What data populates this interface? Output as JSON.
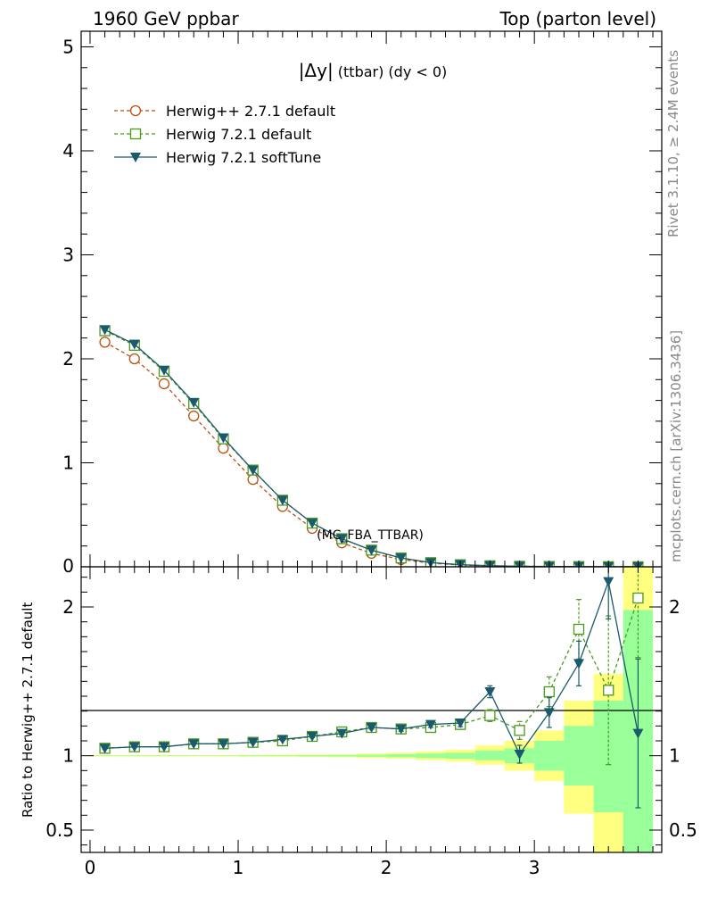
{
  "header": {
    "left": "1960 GeV ppbar",
    "right": "Top (parton level)"
  },
  "side": {
    "rivet": "Rivet 3.1.10, ≥ 2.4M events",
    "mcplots": "mcplots.cern.ch [arXiv:1306.3436]"
  },
  "plot_title": {
    "main": "|Δy|",
    "sub": " (ttbar)  (dy < 0)"
  },
  "watermark": "(MC_FBA_TTBAR)",
  "ratio_ylabel": "Ratio to Herwig++ 2.7.1 default",
  "colors": {
    "herwigpp": "#b8520f",
    "herwig721": "#4a9a1a",
    "softtune": "#1a5a6a",
    "band_yellow": "#ffff80",
    "band_green": "#99ff99"
  },
  "chart_data": [
    {
      "type": "line",
      "panel": "main",
      "xlim": [
        -0.06,
        3.86
      ],
      "ylim": [
        0,
        5.15
      ],
      "x": [
        0.1,
        0.3,
        0.5,
        0.7,
        0.9,
        1.1,
        1.3,
        1.5,
        1.7,
        1.9,
        2.1,
        2.3,
        2.5,
        2.7,
        2.9,
        3.1,
        3.3,
        3.5,
        3.7
      ],
      "series": [
        {
          "name": "Herwig++ 2.7.1 default",
          "marker": "circle",
          "dash": true,
          "values": [
            2.16,
            2.0,
            1.76,
            1.45,
            1.14,
            0.84,
            0.58,
            0.37,
            0.23,
            0.13,
            0.07,
            0.035,
            0.017,
            0.008,
            0.004,
            0.002,
            0.001,
            0.0005,
            0.0002
          ]
        },
        {
          "name": "Herwig 7.2.1 default",
          "marker": "square",
          "dash": true,
          "values": [
            2.27,
            2.13,
            1.88,
            1.57,
            1.23,
            0.93,
            0.64,
            0.42,
            0.27,
            0.16,
            0.085,
            0.04,
            0.02,
            0.01,
            0.005,
            0.003,
            0.002,
            0.001,
            0.0005
          ]
        },
        {
          "name": "Herwig 7.2.1 softTune",
          "marker": "triangle",
          "dash": false,
          "values": [
            2.28,
            2.14,
            1.89,
            1.58,
            1.24,
            0.93,
            0.64,
            0.42,
            0.27,
            0.16,
            0.085,
            0.04,
            0.02,
            0.01,
            0.005,
            0.003,
            0.002,
            0.001,
            0.0005
          ]
        }
      ],
      "yticks": [
        "1",
        "2",
        "3",
        "4",
        "5"
      ]
    },
    {
      "type": "line",
      "panel": "ratio",
      "xlim": [
        -0.06,
        3.86
      ],
      "ylim": [
        0.35,
        2.27
      ],
      "x": [
        0.1,
        0.3,
        0.5,
        0.7,
        0.9,
        1.1,
        1.3,
        1.5,
        1.7,
        1.9,
        2.1,
        2.3,
        2.5,
        2.7,
        2.9,
        3.1,
        3.3,
        3.5,
        3.7
      ],
      "band_edges": [
        0.0,
        0.2,
        0.4,
        0.6,
        0.8,
        1.0,
        1.2,
        1.4,
        1.6,
        1.8,
        2.0,
        2.2,
        2.4,
        2.6,
        2.8,
        3.0,
        3.2,
        3.4,
        3.6,
        3.8
      ],
      "band_yellow": [
        [
          0.995,
          1.005
        ],
        [
          0.995,
          1.005
        ],
        [
          0.995,
          1.005
        ],
        [
          0.995,
          1.005
        ],
        [
          0.995,
          1.005
        ],
        [
          0.994,
          1.006
        ],
        [
          0.993,
          1.007
        ],
        [
          0.992,
          1.008
        ],
        [
          0.99,
          1.01
        ],
        [
          0.985,
          1.015
        ],
        [
          0.98,
          1.02
        ],
        [
          0.97,
          1.03
        ],
        [
          0.96,
          1.04
        ],
        [
          0.94,
          1.07
        ],
        [
          0.9,
          1.1
        ],
        [
          0.83,
          1.17
        ],
        [
          0.61,
          1.37
        ],
        [
          0.35,
          1.55
        ],
        [
          0.35,
          2.27
        ]
      ],
      "band_green": [
        [
          0.998,
          1.002
        ],
        [
          0.998,
          1.002
        ],
        [
          0.998,
          1.002
        ],
        [
          0.998,
          1.002
        ],
        [
          0.998,
          1.002
        ],
        [
          0.997,
          1.003
        ],
        [
          0.997,
          1.003
        ],
        [
          0.996,
          1.004
        ],
        [
          0.995,
          1.005
        ],
        [
          0.993,
          1.007
        ],
        [
          0.99,
          1.01
        ],
        [
          0.985,
          1.015
        ],
        [
          0.98,
          1.02
        ],
        [
          0.97,
          1.035
        ],
        [
          0.95,
          1.05
        ],
        [
          0.9,
          1.1
        ],
        [
          0.8,
          1.2
        ],
        [
          0.62,
          1.37
        ],
        [
          0.35,
          1.98
        ]
      ],
      "series": [
        {
          "name": "Herwig 7.2.1 default",
          "marker": "square",
          "dash": true,
          "values": [
            1.05,
            1.06,
            1.06,
            1.08,
            1.08,
            1.09,
            1.1,
            1.13,
            1.16,
            1.19,
            1.18,
            1.19,
            1.21,
            1.27,
            1.17,
            1.43,
            1.85,
            1.44,
            2.06
          ],
          "err": [
            0.005,
            0.005,
            0.005,
            0.005,
            0.005,
            0.006,
            0.007,
            0.008,
            0.01,
            0.012,
            0.015,
            0.02,
            0.025,
            0.04,
            0.06,
            0.1,
            0.2,
            0.5,
            0.4
          ]
        },
        {
          "name": "Herwig 7.2.1 softTune",
          "marker": "triangle",
          "dash": false,
          "values": [
            1.05,
            1.06,
            1.06,
            1.08,
            1.08,
            1.09,
            1.11,
            1.13,
            1.15,
            1.19,
            1.18,
            1.21,
            1.22,
            1.43,
            1.01,
            1.29,
            1.62,
            2.17,
            1.15
          ],
          "err": [
            0.005,
            0.005,
            0.005,
            0.005,
            0.005,
            0.006,
            0.007,
            0.008,
            0.01,
            0.012,
            0.015,
            0.02,
            0.025,
            0.04,
            0.06,
            0.1,
            0.15,
            0.25,
            0.5
          ]
        }
      ],
      "yticks": [
        "0.5",
        "1",
        "2"
      ],
      "xticks": [
        "0",
        "1",
        "2",
        "3"
      ]
    }
  ]
}
